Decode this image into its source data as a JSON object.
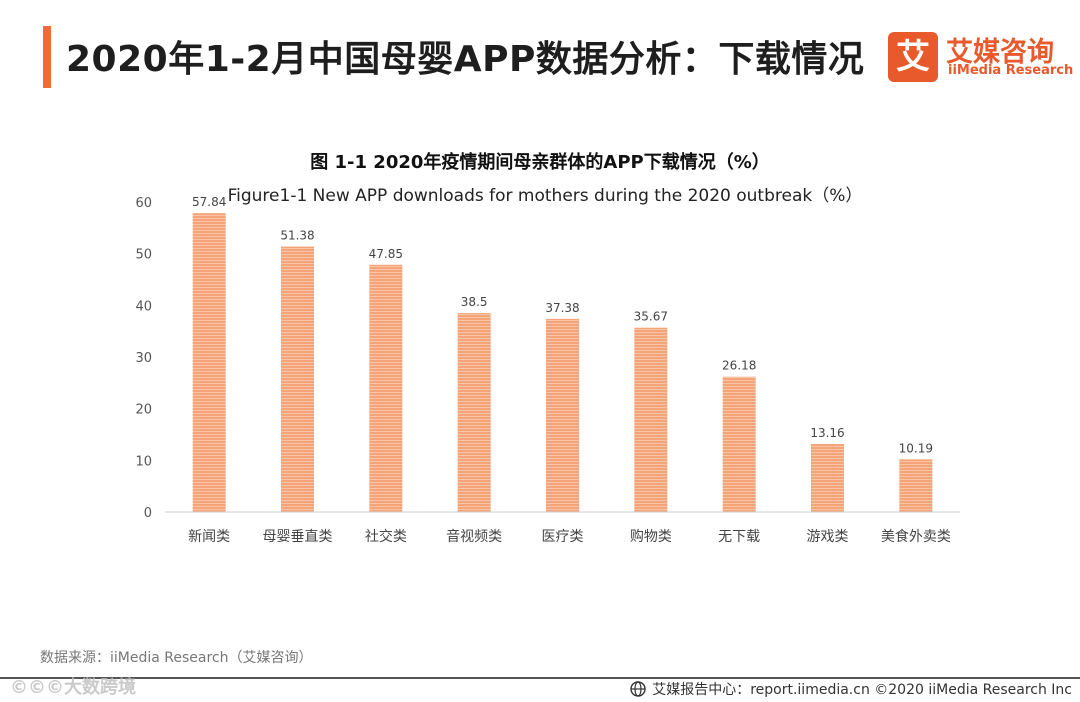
{
  "header": {
    "title": "2020年1-2月中国母婴APP数据分析：下载情况",
    "accent_color": "#f26a35"
  },
  "logo": {
    "mark": "艾",
    "name_cn": "艾媒咨询",
    "name_en": "iiMedia Research",
    "color": "#e8592c"
  },
  "chart_data": {
    "type": "bar",
    "title": "图 1-1 2020年疫情期间母亲群体的APP下载情况（%）",
    "subtitle": "Figure1-1 New APP downloads for mothers during the 2020 outbreak（%）",
    "categories": [
      "新闻类",
      "母婴垂直类",
      "社交类",
      "音视频类",
      "医疗类",
      "购物类",
      "无下载",
      "游戏类",
      "美食外卖类"
    ],
    "values": [
      57.84,
      51.38,
      47.85,
      38.5,
      37.38,
      35.67,
      26.18,
      13.16,
      10.19
    ],
    "value_labels": [
      "57.84",
      "51.38",
      "47.85",
      "38.5",
      "37.38",
      "35.67",
      "26.18",
      "13.16",
      "10.19"
    ],
    "yticks": [
      "0",
      "10",
      "20",
      "30",
      "40",
      "50",
      "60"
    ],
    "ylim": [
      0,
      60
    ],
    "xlabel": "",
    "ylabel": "",
    "grid": false,
    "bar_color": "#f5a47a",
    "bar_stripe_color": "#f8c4a4"
  },
  "source": {
    "text": "数据来源：iiMedia Research（艾媒咨询）"
  },
  "footer": {
    "text": "艾媒报告中心：report.iimedia.cn  ©2020  iiMedia Research  Inc"
  },
  "watermark": {
    "text": "©©©大数跨境"
  }
}
